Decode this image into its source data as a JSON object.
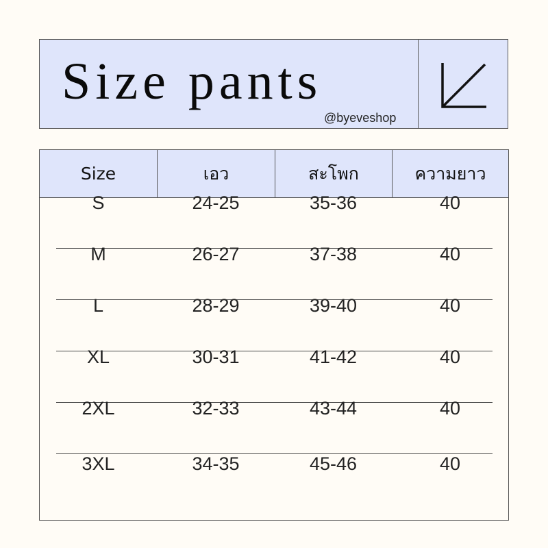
{
  "header": {
    "title": "Size pants",
    "handle": "@byeveshop",
    "icon": "arrow-down-left-icon"
  },
  "colors": {
    "header_bg": "#dfe5fb",
    "page_bg": "#fffcf6",
    "border": "#555555"
  },
  "table": {
    "columns": [
      "Size",
      "เอว",
      "สะโพก",
      "ความยาว"
    ],
    "rows": [
      [
        "S",
        "24-25",
        "35-36",
        "40"
      ],
      [
        "M",
        "26-27",
        "37-38",
        "40"
      ],
      [
        "L",
        "28-29",
        "39-40",
        "40"
      ],
      [
        "XL",
        "30-31",
        "41-42",
        "40"
      ],
      [
        "2XL",
        "32-33",
        "43-44",
        "40"
      ],
      [
        "3XL",
        "34-35",
        "45-46",
        "40"
      ]
    ]
  }
}
